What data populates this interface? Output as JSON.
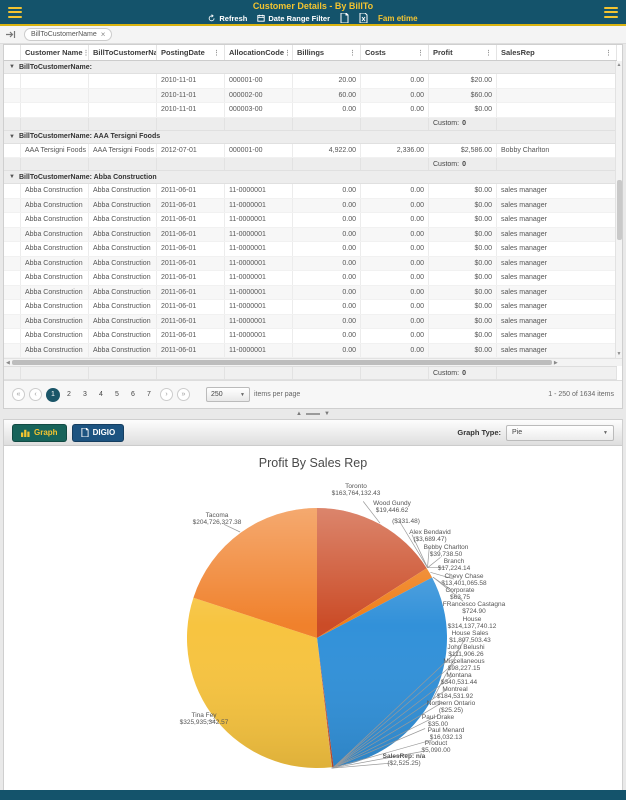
{
  "header": {
    "title": "Customer Details - By BillTo",
    "refresh_label": "Refresh",
    "date_filter_label": "Date Range Filter",
    "brand_label": "Fam etime"
  },
  "group_bar": {
    "chip_label": "BillToCustomerName",
    "chip_close": "×"
  },
  "grid": {
    "columns": [
      {
        "label": "Customer Name",
        "align": "left"
      },
      {
        "label": "BillToCustomerName",
        "align": "left"
      },
      {
        "label": "PostingDate",
        "align": "left"
      },
      {
        "label": "AllocationCode",
        "align": "left"
      },
      {
        "label": "Billings",
        "align": "right"
      },
      {
        "label": "Costs",
        "align": "right"
      },
      {
        "label": "Profit",
        "align": "right"
      },
      {
        "label": "SalesRep",
        "align": "left"
      }
    ],
    "groups": [
      {
        "header": "BillToCustomerName:",
        "rows": [
          [
            "",
            "",
            "2010-11-01",
            "000001-00",
            "20.00",
            "0.00",
            "$20.00",
            ""
          ],
          [
            "",
            "",
            "2010-11-01",
            "000002-00",
            "60.00",
            "0.00",
            "$60.00",
            ""
          ],
          [
            "",
            "",
            "2010-11-01",
            "000003-00",
            "0.00",
            "0.00",
            "$0.00",
            ""
          ]
        ],
        "footer": {
          "label": "Custom:",
          "value": "0"
        }
      },
      {
        "header": "BillToCustomerName: AAA Tersigni Foods",
        "rows": [
          [
            "AAA Tersigni Foods",
            "AAA Tersigni Foods",
            "2012-07-01",
            "000001-00",
            "4,922.00",
            "2,336.00",
            "$2,586.00",
            "Bobby Charlton"
          ]
        ],
        "footer": {
          "label": "Custom:",
          "value": "0"
        }
      },
      {
        "header": "BillToCustomerName: Abba Construction",
        "rows": [
          [
            "Abba Construction",
            "Abba Construction",
            "2011-06-01",
            "11-0000001",
            "0.00",
            "0.00",
            "$0.00",
            "sales manager"
          ],
          [
            "Abba Construction",
            "Abba Construction",
            "2011-06-01",
            "11-0000001",
            "0.00",
            "0.00",
            "$0.00",
            "sales manager"
          ],
          [
            "Abba Construction",
            "Abba Construction",
            "2011-06-01",
            "11-0000001",
            "0.00",
            "0.00",
            "$0.00",
            "sales manager"
          ],
          [
            "Abba Construction",
            "Abba Construction",
            "2011-06-01",
            "11-0000001",
            "0.00",
            "0.00",
            "$0.00",
            "sales manager"
          ],
          [
            "Abba Construction",
            "Abba Construction",
            "2011-06-01",
            "11-0000001",
            "0.00",
            "0.00",
            "$0.00",
            "sales manager"
          ],
          [
            "Abba Construction",
            "Abba Construction",
            "2011-06-01",
            "11-0000001",
            "0.00",
            "0.00",
            "$0.00",
            "sales manager"
          ],
          [
            "Abba Construction",
            "Abba Construction",
            "2011-06-01",
            "11-0000001",
            "0.00",
            "0.00",
            "$0.00",
            "sales manager"
          ],
          [
            "Abba Construction",
            "Abba Construction",
            "2011-06-01",
            "11-0000001",
            "0.00",
            "0.00",
            "$0.00",
            "sales manager"
          ],
          [
            "Abba Construction",
            "Abba Construction",
            "2011-06-01",
            "11-0000001",
            "0.00",
            "0.00",
            "$0.00",
            "sales manager"
          ],
          [
            "Abba Construction",
            "Abba Construction",
            "2011-06-01",
            "11-0000001",
            "0.00",
            "0.00",
            "$0.00",
            "sales manager"
          ],
          [
            "Abba Construction",
            "Abba Construction",
            "2011-06-01",
            "11-0000001",
            "0.00",
            "0.00",
            "$0.00",
            "sales manager"
          ],
          [
            "Abba Construction",
            "Abba Construction",
            "2011-06-01",
            "11-0000001",
            "0.00",
            "0.00",
            "$0.00",
            "sales manager"
          ]
        ],
        "footer": {
          "label": "Custom:",
          "value": "0"
        }
      }
    ],
    "pinned_footer": {
      "label": "Custom:",
      "value": "0"
    }
  },
  "pager": {
    "first": "«",
    "prev": "‹",
    "next": "›",
    "last": "»",
    "pages": [
      "1",
      "2",
      "3",
      "4",
      "5",
      "6",
      "7"
    ],
    "current": "1",
    "page_size": "250",
    "items_per_page_label": "items per page",
    "range_label": "1 - 250 of 1634 items"
  },
  "chart_toolbar": {
    "graph_button": "Graph",
    "digio_button": "DIGIO",
    "graph_type_label": "Graph Type:",
    "graph_type_value": "Pie"
  },
  "chart_data": {
    "type": "pie",
    "title": "Profit By Sales Rep",
    "legend": "none",
    "slices": [
      {
        "name": "Toronto",
        "value": 163764132.43,
        "display": "$163,764,132.43",
        "color": "#cb4c27"
      },
      {
        "name": "Wood Gundy",
        "value": 19446.62,
        "display": "$19,446.62",
        "color": "#e2711f"
      },
      {
        "name": "",
        "value": -331.48,
        "display": "($331.48)",
        "color": "#3b96d2"
      },
      {
        "name": "Alex Bendavid",
        "value": -3689.47,
        "display": "($3,689.47)",
        "color": "#f4c63f"
      },
      {
        "name": "Bobby Charlton",
        "value": 39738.5,
        "display": "$39,738.50",
        "color": "#cb4c27"
      },
      {
        "name": "Branch",
        "value": 17224.14,
        "display": "$17,224.14",
        "color": "#e2711f"
      },
      {
        "name": "Chevy Chase",
        "value": 13401065.58,
        "display": "$13,401,065.58",
        "color": "#ef7d17"
      },
      {
        "name": "Corporate",
        "value": 63.75,
        "display": "$63.75",
        "color": "#3b96d2"
      },
      {
        "name": "FRancesco Castagna",
        "value": 724.9,
        "display": "$724.90",
        "color": "#f4c63f"
      },
      {
        "name": "House",
        "value": 314137740.12,
        "display": "$314,137,740.12",
        "color": "#3291d9"
      },
      {
        "name": "House Sales",
        "value": 1807503.43,
        "display": "$1,807,503.43",
        "color": "#cb4c27"
      },
      {
        "name": "John Belushi",
        "value": 111906.26,
        "display": "$111,906.26",
        "color": "#e2711f"
      },
      {
        "name": "Miscellaneous",
        "value": 98227.15,
        "display": "$98,227.15",
        "color": "#3b96d2"
      },
      {
        "name": "Montana",
        "value": 340531.44,
        "display": "$340,531.44",
        "color": "#f4c63f"
      },
      {
        "name": "Montreal",
        "value": 184531.92,
        "display": "$184,531.92",
        "color": "#cb4c27"
      },
      {
        "name": "Northern Ontario",
        "value": -25.25,
        "display": "($25.25)",
        "color": "#e2711f"
      },
      {
        "name": "Paul Drake",
        "value": 35.0,
        "display": "$35.00",
        "color": "#3b96d2"
      },
      {
        "name": "Paul Menard",
        "value": 16032.13,
        "display": "$16,032.13",
        "color": "#f4c63f"
      },
      {
        "name": "Product",
        "value": 5090.0,
        "display": "$5,090.00",
        "color": "#cb4c27"
      },
      {
        "name": "SalesRep: n/a",
        "value": -2525.25,
        "display": "($2,525.25)",
        "color": "#e2711f",
        "emphasis": true
      },
      {
        "name": "Tina Fey",
        "value": 325935342.57,
        "display": "$325,935,342.57",
        "color": "#f7c440"
      },
      {
        "name": "Tacoma",
        "value": 204726327.38,
        "display": "$204,726,327.38",
        "color": "#f0812c"
      }
    ]
  },
  "colors": {
    "header_bg": "#14536b",
    "accent_gold": "#f4c430",
    "selected_page": "#1a5568",
    "graph_btn": "#17635a",
    "digio_btn": "#1c5380"
  }
}
